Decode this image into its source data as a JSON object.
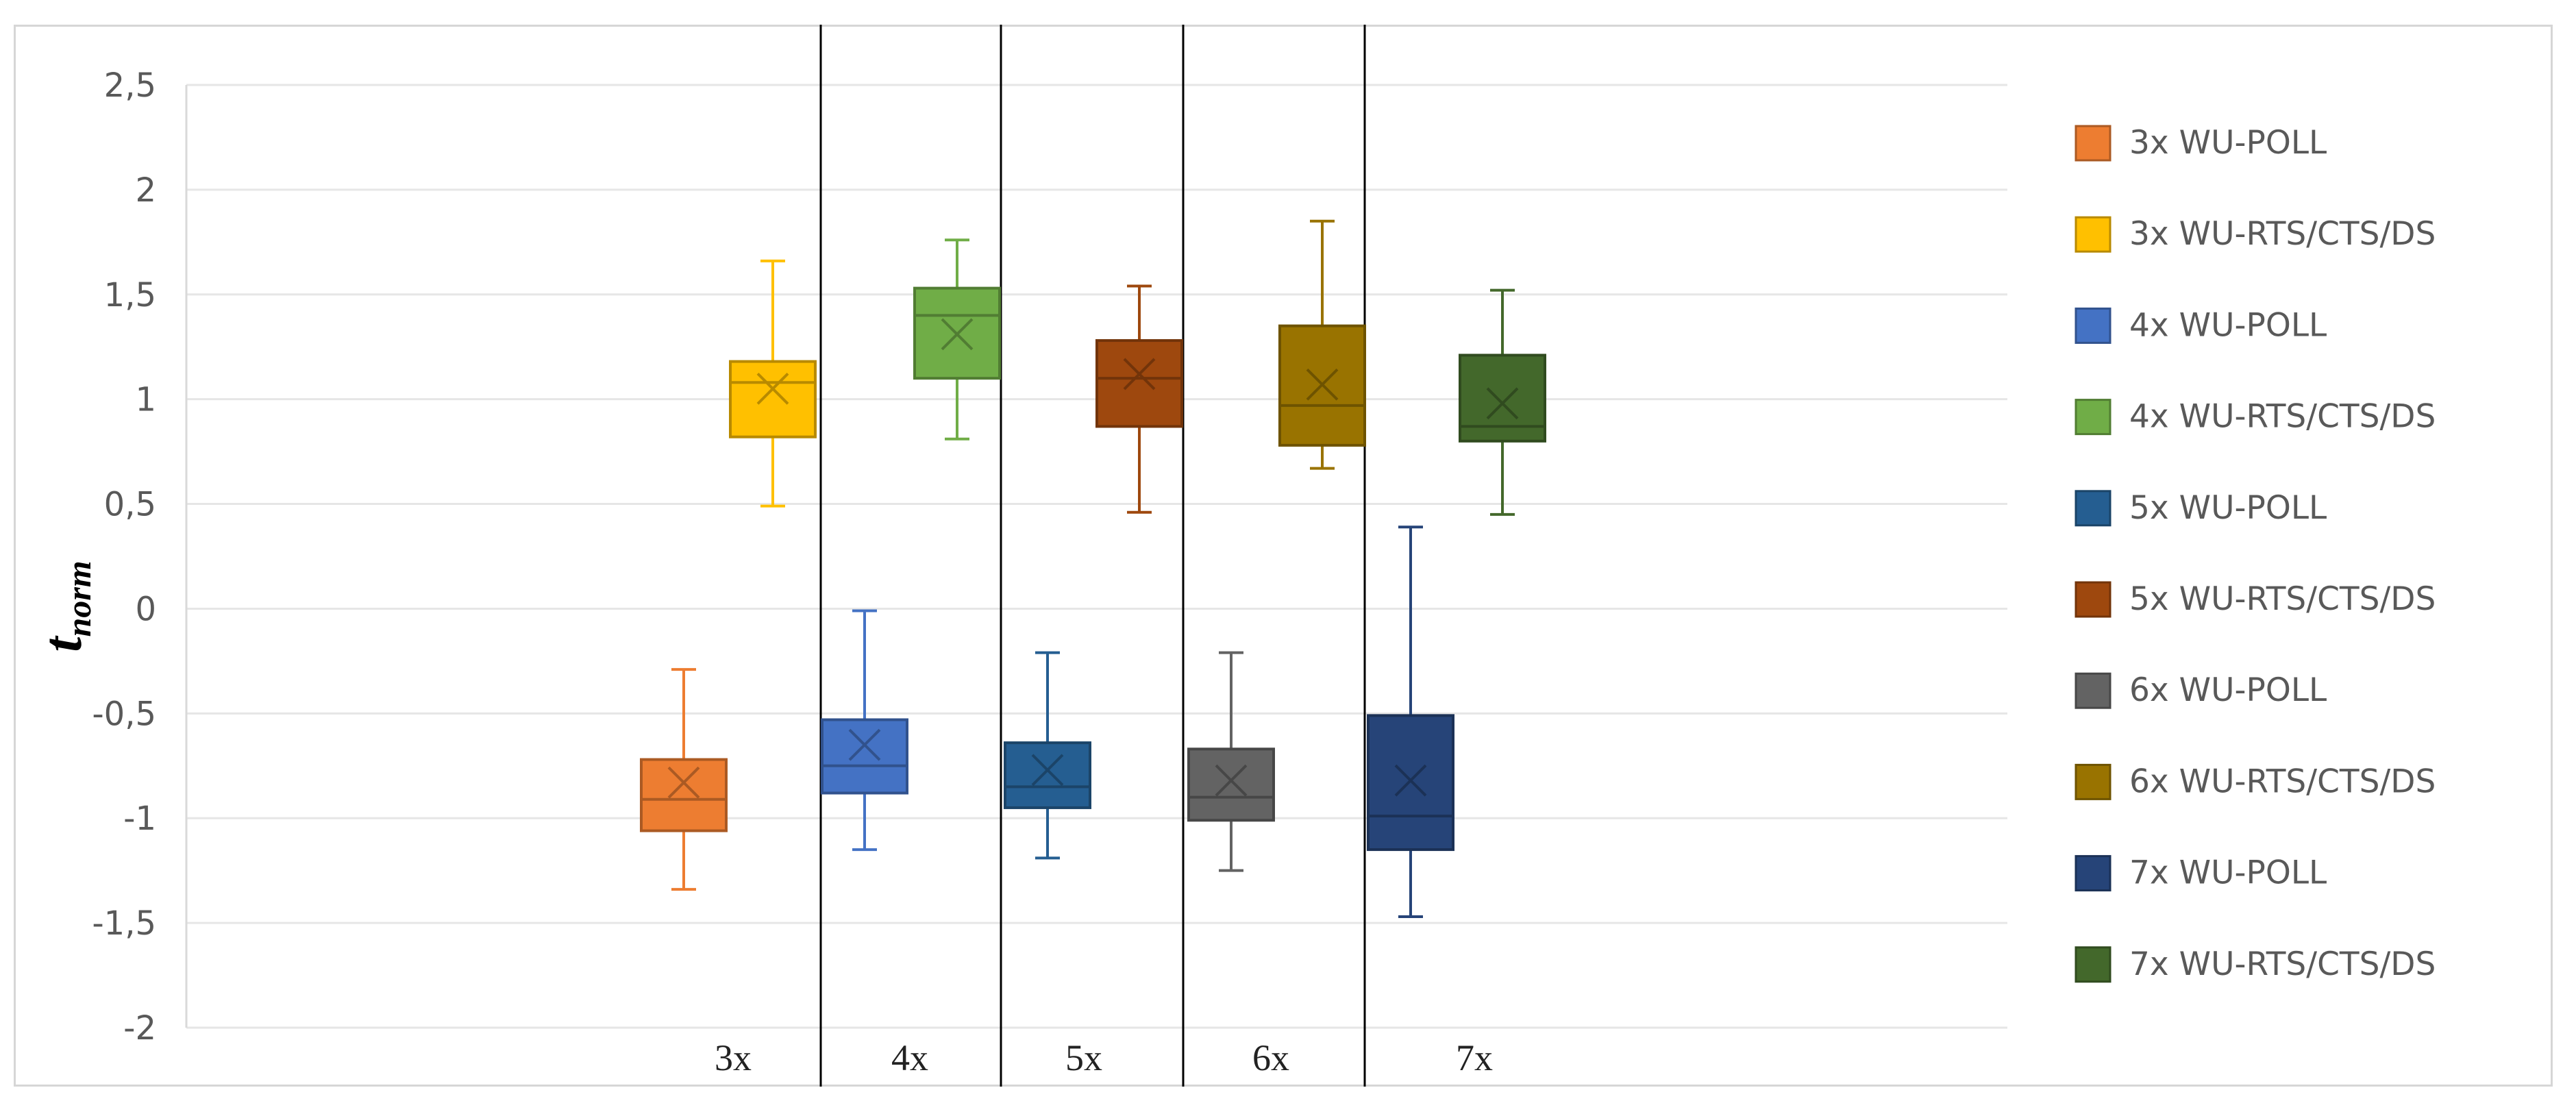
{
  "chart_data": {
    "type": "boxplot",
    "title": "",
    "ylabel": "t",
    "ylabel_subscript": "norm",
    "xlabel": "",
    "ylim": [
      -2,
      2.5
    ],
    "y_ticks": [
      "2,5",
      "2",
      "1,5",
      "1",
      "0,5",
      "0",
      "-0,5",
      "-1",
      "-1,5",
      "-2"
    ],
    "y_tick_values": [
      2.5,
      2,
      1.5,
      1,
      0.5,
      0,
      -0.5,
      -1,
      -1.5,
      -2
    ],
    "grid": true,
    "legend_position": "right",
    "categories": [
      "3x",
      "4x",
      "5x",
      "6x",
      "7x"
    ],
    "series": [
      {
        "name": "3x WU-POLL",
        "group": "3x",
        "color": "#ED7D31",
        "min": -1.34,
        "q1": -1.06,
        "median": -0.91,
        "q3": -0.72,
        "max": -0.29,
        "mean": -0.83
      },
      {
        "name": "3x WU-RTS/CTS/DS",
        "group": "3x",
        "color": "#FFC000",
        "min": 0.49,
        "q1": 0.82,
        "median": 1.08,
        "q3": 1.18,
        "max": 1.66,
        "mean": 1.05
      },
      {
        "name": "4x WU-POLL",
        "group": "4x",
        "color": "#4472C4",
        "min": -1.15,
        "q1": -0.88,
        "median": -0.75,
        "q3": -0.53,
        "max": -0.01,
        "mean": -0.65
      },
      {
        "name": "4x WU-RTS/CTS/DS",
        "group": "4x",
        "color": "#70AD47",
        "min": 0.81,
        "q1": 1.1,
        "median": 1.4,
        "q3": 1.53,
        "max": 1.76,
        "mean": 1.31
      },
      {
        "name": "5x WU-POLL",
        "group": "5x",
        "color": "#255E91",
        "min": -1.19,
        "q1": -0.95,
        "median": -0.85,
        "q3": -0.64,
        "max": -0.21,
        "mean": -0.77
      },
      {
        "name": "5x WU-RTS/CTS/DS",
        "group": "5x",
        "color": "#9E480E",
        "min": 0.46,
        "q1": 0.87,
        "median": 1.1,
        "q3": 1.28,
        "max": 1.54,
        "mean": 1.12
      },
      {
        "name": "6x WU-POLL",
        "group": "6x",
        "color": "#636363",
        "min": -1.25,
        "q1": -1.01,
        "median": -0.9,
        "q3": -0.67,
        "max": -0.21,
        "mean": -0.82
      },
      {
        "name": "6x WU-RTS/CTS/DS",
        "group": "6x",
        "color": "#997300",
        "min": 0.67,
        "q1": 0.78,
        "median": 0.97,
        "q3": 1.35,
        "max": 1.85,
        "mean": 1.07
      },
      {
        "name": "7x WU-POLL",
        "group": "7x",
        "color": "#264478",
        "min": -1.47,
        "q1": -1.15,
        "median": -0.99,
        "q3": -0.51,
        "max": 0.39,
        "mean": -0.82
      },
      {
        "name": "7x WU-RTS/CTS/DS",
        "group": "7x",
        "color": "#43682B",
        "min": 0.45,
        "q1": 0.8,
        "median": 0.87,
        "q3": 1.21,
        "max": 1.52,
        "mean": 0.98
      }
    ]
  }
}
